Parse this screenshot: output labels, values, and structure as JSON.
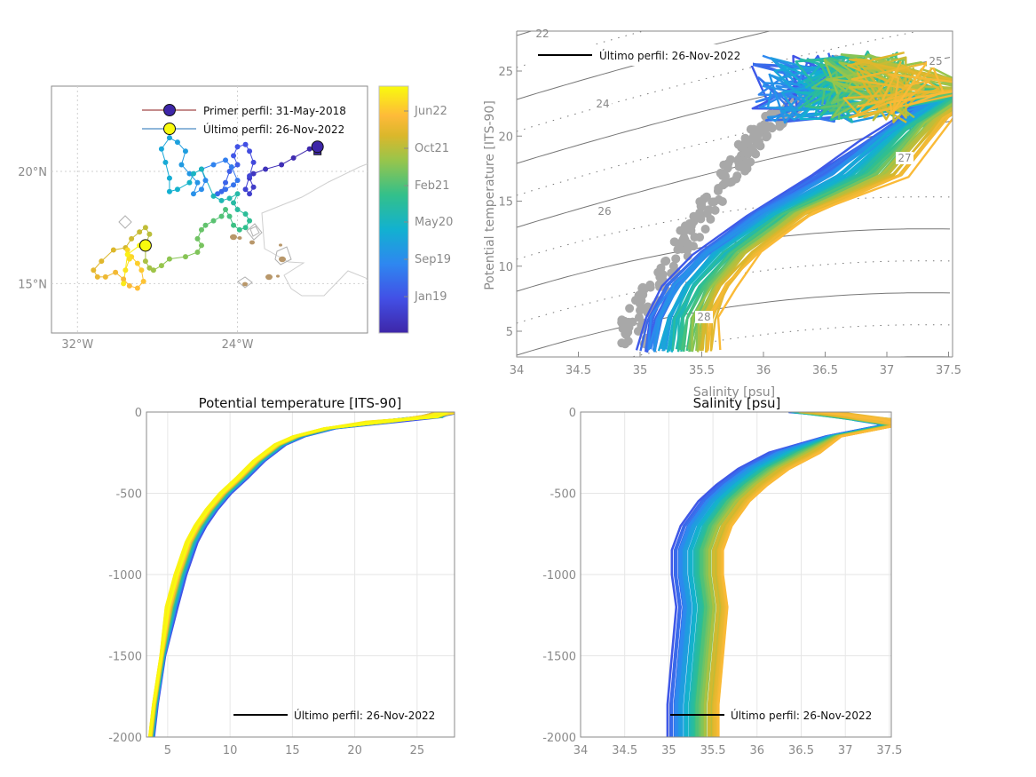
{
  "chart_data": [
    {
      "type": "scatter",
      "id": "trajectory-map",
      "title": "",
      "xlabel": "",
      "ylabel": "",
      "xlim": [
        -33.3,
        -17.5
      ],
      "ylim": [
        12.8,
        23.8
      ],
      "xticks": [
        {
          "value": -32,
          "label": "32°W"
        },
        {
          "value": -24,
          "label": "24°W"
        }
      ],
      "yticks": [
        {
          "value": 15,
          "label": "15°N"
        },
        {
          "value": 20,
          "label": "20°N"
        }
      ],
      "grid": true,
      "legend": {
        "placement": "top-right",
        "entries": [
          {
            "label": "Primer perfil: 31-May-2018",
            "line_color": "#8b1a1a",
            "marker_color": "#3e26a8"
          },
          {
            "label": "Último perfil: 26-Nov-2022",
            "line_color": "#1f6fb5",
            "marker_color": "#f9fb0e"
          }
        ]
      },
      "first_profile": {
        "lon": -20.0,
        "lat": 21.1
      },
      "last_profile": {
        "lon": -28.6,
        "lat": 16.7
      },
      "track": [
        [
          -20.0,
          21.1
        ],
        [
          -20.4,
          21.0
        ],
        [
          -21.2,
          20.6
        ],
        [
          -21.8,
          20.3
        ],
        [
          -22.6,
          20.1
        ],
        [
          -23.2,
          19.9
        ],
        [
          -23.4,
          19.7
        ],
        [
          -23.2,
          19.3
        ],
        [
          -23.4,
          19.0
        ],
        [
          -23.6,
          19.2
        ],
        [
          -23.4,
          19.8
        ],
        [
          -23.2,
          20.4
        ],
        [
          -23.4,
          20.9
        ],
        [
          -23.6,
          21.2
        ],
        [
          -24.0,
          21.1
        ],
        [
          -24.2,
          20.7
        ],
        [
          -24.0,
          20.3
        ],
        [
          -24.4,
          20.0
        ],
        [
          -24.6,
          19.5
        ],
        [
          -24.8,
          19.1
        ],
        [
          -25.0,
          19.0
        ],
        [
          -24.6,
          19.2
        ],
        [
          -24.2,
          19.4
        ],
        [
          -24.0,
          19.6
        ],
        [
          -24.3,
          20.2
        ],
        [
          -24.6,
          20.5
        ],
        [
          -25.2,
          20.3
        ],
        [
          -25.8,
          20.1
        ],
        [
          -25.6,
          19.6
        ],
        [
          -25.8,
          19.2
        ],
        [
          -26.2,
          19.0
        ],
        [
          -26.0,
          19.5
        ],
        [
          -26.4,
          19.9
        ],
        [
          -26.8,
          20.3
        ],
        [
          -26.6,
          20.9
        ],
        [
          -27.0,
          21.3
        ],
        [
          -27.4,
          21.5
        ],
        [
          -27.8,
          21.0
        ],
        [
          -27.6,
          20.4
        ],
        [
          -27.4,
          19.7
        ],
        [
          -27.4,
          19.1
        ],
        [
          -27.0,
          19.2
        ],
        [
          -26.4,
          19.5
        ],
        [
          -26.2,
          19.9
        ],
        [
          -25.8,
          20.1
        ],
        [
          -25.2,
          18.9
        ],
        [
          -24.8,
          18.7
        ],
        [
          -24.4,
          18.8
        ],
        [
          -24.0,
          19.0
        ],
        [
          -24.2,
          18.6
        ],
        [
          -24.0,
          18.3
        ],
        [
          -23.6,
          18.1
        ],
        [
          -23.4,
          17.8
        ],
        [
          -23.6,
          17.5
        ],
        [
          -23.9,
          17.4
        ],
        [
          -24.2,
          17.6
        ],
        [
          -24.4,
          18.0
        ],
        [
          -24.6,
          18.3
        ],
        [
          -24.8,
          18.0
        ],
        [
          -25.2,
          17.8
        ],
        [
          -25.6,
          17.6
        ],
        [
          -25.8,
          17.4
        ],
        [
          -26.0,
          17.0
        ],
        [
          -25.8,
          16.7
        ],
        [
          -26.0,
          16.4
        ],
        [
          -26.6,
          16.2
        ],
        [
          -27.4,
          16.1
        ],
        [
          -27.8,
          15.8
        ],
        [
          -28.2,
          15.6
        ],
        [
          -28.4,
          15.7
        ],
        [
          -28.6,
          16.0
        ],
        [
          -28.6,
          16.7
        ],
        [
          -28.4,
          17.2
        ],
        [
          -28.6,
          17.5
        ],
        [
          -28.9,
          17.3
        ],
        [
          -29.3,
          17.0
        ],
        [
          -29.6,
          16.6
        ],
        [
          -30.2,
          16.5
        ],
        [
          -30.8,
          16.0
        ],
        [
          -31.2,
          15.6
        ],
        [
          -31.0,
          15.3
        ],
        [
          -30.6,
          15.3
        ],
        [
          -30.1,
          15.5
        ],
        [
          -29.7,
          15.2
        ],
        [
          -29.4,
          14.9
        ],
        [
          -29.0,
          14.8
        ],
        [
          -28.7,
          15.1
        ],
        [
          -28.8,
          15.6
        ],
        [
          -29.0,
          15.9
        ],
        [
          -29.3,
          16.2
        ],
        [
          -29.5,
          16.5
        ],
        [
          -29.4,
          16.1
        ],
        [
          -29.6,
          15.6
        ],
        [
          -29.7,
          15.0
        ],
        [
          -29.5,
          16.3
        ],
        [
          -28.9,
          16.7
        ],
        [
          -28.6,
          16.7
        ]
      ],
      "colorbar": {
        "ticks": [
          "Jan19",
          "Sep19",
          "May20",
          "Feb21",
          "Oct21",
          "Jun22"
        ],
        "colormap": "parula",
        "range": [
          "May-2018",
          "Nov-2022"
        ]
      }
    },
    {
      "type": "line",
      "id": "ts-diagram",
      "title": "",
      "xlabel": "Salinity [psu]",
      "ylabel": "Potential temperature [ITS-90]",
      "xlim": [
        34.0,
        37.55
      ],
      "ylim": [
        3.0,
        27.7
      ],
      "xticks": [
        34,
        34.5,
        35,
        35.5,
        36,
        36.5,
        37,
        37.5
      ],
      "yticks": [
        5,
        10,
        15,
        20,
        25
      ],
      "density_contours": [
        22,
        23,
        24,
        25,
        26,
        27,
        28
      ],
      "density_contour_labels": [
        "22",
        "24",
        "25",
        "26",
        "27",
        "28"
      ],
      "legend": {
        "placement": "top-left",
        "entries": [
          {
            "label": "Último perfil: 26-Nov-2022",
            "color": "#000000"
          }
        ]
      },
      "climatology_points_color": "#a8a8a8",
      "series_summary": {
        "early_profiles_color": "#3e26a8",
        "late_profiles_color": "#f5c31c",
        "profile_shape_S": [
          35.0,
          35.05,
          35.2,
          35.45,
          35.9,
          36.4,
          36.8,
          37.2
        ],
        "profile_shape_T": [
          3.5,
          6.0,
          8.5,
          11.0,
          14.0,
          17.0,
          19.5,
          22.0
        ]
      }
    },
    {
      "type": "line",
      "id": "temperature-profiles",
      "title": "Potential temperature [ITS-90]",
      "xlabel": "",
      "ylabel": "",
      "xlim": [
        3.3,
        28.0
      ],
      "ylim": [
        -2000,
        0
      ],
      "xticks": [
        5,
        10,
        15,
        20,
        25
      ],
      "yticks": [
        -2000,
        -1500,
        -1000,
        -500,
        0
      ],
      "grid": true,
      "legend": {
        "placement": "bottom-right",
        "entries": [
          {
            "label": "Último perfil: 26-Nov-2022",
            "color": "#000000"
          }
        ]
      },
      "profile_depth": [
        0,
        -30,
        -60,
        -100,
        -150,
        -200,
        -300,
        -400,
        -500,
        -600,
        -700,
        -800,
        -1000,
        -1200,
        -1500,
        -1800,
        -2000
      ],
      "profile_temp": [
        27.5,
        26.0,
        22.0,
        18.0,
        15.5,
        14.0,
        12.3,
        11.0,
        9.6,
        8.5,
        7.6,
        6.9,
        6.0,
        5.3,
        4.6,
        4.0,
        3.7
      ]
    },
    {
      "type": "line",
      "id": "salinity-profiles",
      "title": "Salinity [psu]",
      "xlabel": "",
      "ylabel": "",
      "xlim": [
        34.0,
        37.55
      ],
      "ylim": [
        -2000,
        0
      ],
      "xticks": [
        34,
        34.5,
        35,
        35.5,
        36,
        36.5,
        37,
        37.5
      ],
      "yticks": [
        -2000,
        -1500,
        -1000,
        -500,
        0
      ],
      "grid": true,
      "legend": {
        "placement": "bottom-left",
        "entries": [
          {
            "label": "Último perfil: 26-Nov-2022",
            "color": "#000000"
          }
        ]
      },
      "profile_depth": [
        0,
        -50,
        -80,
        -150,
        -250,
        -350,
        -450,
        -550,
        -700,
        -850,
        -1000,
        -1200,
        -1500,
        -1800,
        -2000
      ],
      "profile_sal": [
        36.6,
        37.3,
        37.45,
        36.8,
        36.2,
        35.85,
        35.6,
        35.4,
        35.2,
        35.1,
        35.1,
        35.15,
        35.1,
        35.05,
        35.05
      ]
    }
  ],
  "labels": {
    "salinity_label_ts": "Salinity [psu]"
  }
}
